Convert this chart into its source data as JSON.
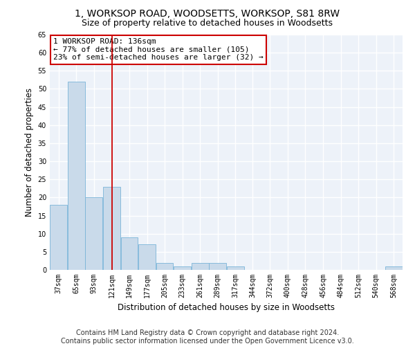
{
  "title": "1, WORKSOP ROAD, WOODSETTS, WORKSOP, S81 8RW",
  "subtitle": "Size of property relative to detached houses in Woodsetts",
  "xlabel": "Distribution of detached houses by size in Woodsetts",
  "ylabel": "Number of detached properties",
  "bar_color": "#c9daea",
  "bar_edge_color": "#7ab4d8",
  "bins": [
    37,
    65,
    93,
    121,
    149,
    177,
    205,
    233,
    261,
    289,
    317,
    344,
    372,
    400,
    428,
    456,
    484,
    512,
    540,
    568,
    596
  ],
  "values": [
    18,
    52,
    20,
    23,
    9,
    7,
    2,
    1,
    2,
    2,
    1,
    0,
    0,
    0,
    0,
    0,
    0,
    0,
    0,
    1
  ],
  "vline_x": 136,
  "vline_color": "#cc0000",
  "annotation_text": "1 WORKSOP ROAD: 136sqm\n← 77% of detached houses are smaller (105)\n23% of semi-detached houses are larger (32) →",
  "annotation_box_edge": "#cc0000",
  "ylim": [
    0,
    65
  ],
  "yticks": [
    0,
    5,
    10,
    15,
    20,
    25,
    30,
    35,
    40,
    45,
    50,
    55,
    60,
    65
  ],
  "footer_line1": "Contains HM Land Registry data © Crown copyright and database right 2024.",
  "footer_line2": "Contains public sector information licensed under the Open Government Licence v3.0.",
  "bg_color": "#edf2f9",
  "grid_color": "#ffffff",
  "title_fontsize": 10,
  "subtitle_fontsize": 9,
  "axis_label_fontsize": 8.5,
  "tick_fontsize": 7,
  "footer_fontsize": 7,
  "annotation_fontsize": 8
}
